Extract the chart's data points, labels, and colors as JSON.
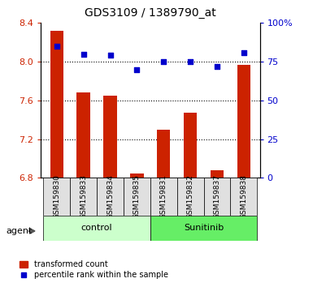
{
  "title": "GDS3109 / 1389790_at",
  "samples": [
    "GSM159830",
    "GSM159833",
    "GSM159834",
    "GSM159835",
    "GSM159831",
    "GSM159832",
    "GSM159837",
    "GSM159838"
  ],
  "transformed_count": [
    8.32,
    7.68,
    7.65,
    6.85,
    7.3,
    7.47,
    6.88,
    7.97
  ],
  "percentile_rank": [
    85,
    80,
    79,
    70,
    75,
    75,
    72,
    81
  ],
  "ylim_left": [
    6.8,
    8.4
  ],
  "ylim_right": [
    0,
    100
  ],
  "yticks_left": [
    6.8,
    7.2,
    7.6,
    8.0,
    8.4
  ],
  "yticks_right": [
    0,
    25,
    50,
    75,
    100
  ],
  "ytick_labels_left": [
    "6.8",
    "7.2",
    "7.6",
    "8.0",
    "8.4"
  ],
  "ytick_labels_right": [
    "0",
    "25",
    "50",
    "75",
    "100%"
  ],
  "groups": [
    {
      "label": "control",
      "start": 0,
      "end": 4,
      "color": "#ccffcc"
    },
    {
      "label": "Sunitinib",
      "start": 4,
      "end": 8,
      "color": "#66ee66"
    }
  ],
  "bar_color": "#cc2200",
  "dot_color": "#0000cc",
  "bg_color": "#e0e0e0",
  "agent_label": "agent",
  "legend_bar_label": "transformed count",
  "legend_dot_label": "percentile rank within the sample",
  "left_tick_color": "#cc2200",
  "right_tick_color": "#0000cc",
  "bar_bottom": 6.8
}
